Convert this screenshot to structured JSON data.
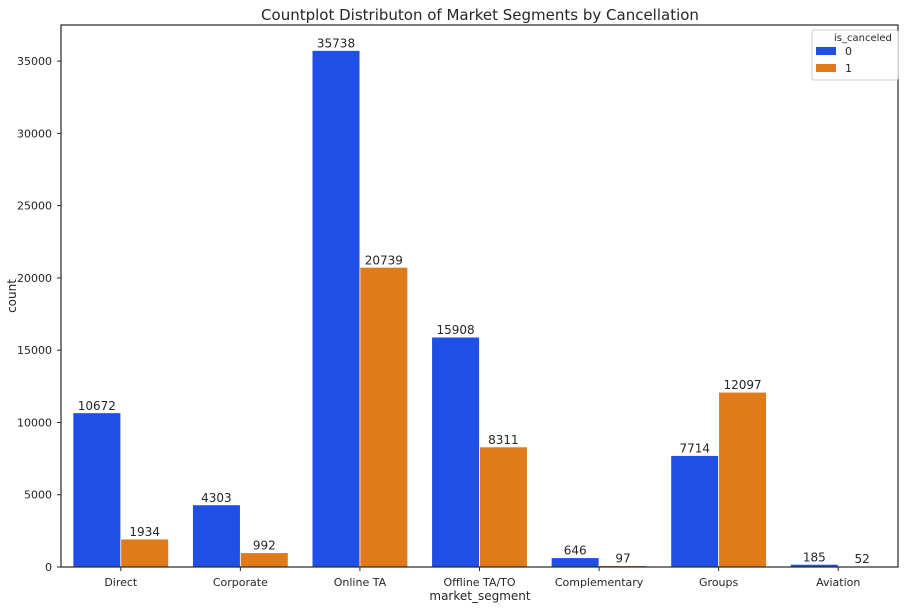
{
  "chart_data": {
    "type": "bar",
    "title": "Countplot Distributon of Market Segments by Cancellation",
    "xlabel": "market_segment",
    "ylabel": "count",
    "categories": [
      "Direct",
      "Corporate",
      "Online TA",
      "Offline TA/TO",
      "Complementary",
      "Groups",
      "Aviation"
    ],
    "series": [
      {
        "name": "0",
        "color": "#1f4fe4",
        "values": [
          10672,
          4303,
          35738,
          15908,
          646,
          7714,
          185
        ]
      },
      {
        "name": "1",
        "color": "#e07b1b",
        "values": [
          1934,
          992,
          20739,
          8311,
          97,
          12097,
          52
        ]
      }
    ],
    "ylim": [
      0,
      37500
    ],
    "yticks": [
      0,
      5000,
      10000,
      15000,
      20000,
      25000,
      30000,
      35000
    ],
    "legend_title": "is_canceled",
    "legend_position": "top-right",
    "grid": false
  }
}
